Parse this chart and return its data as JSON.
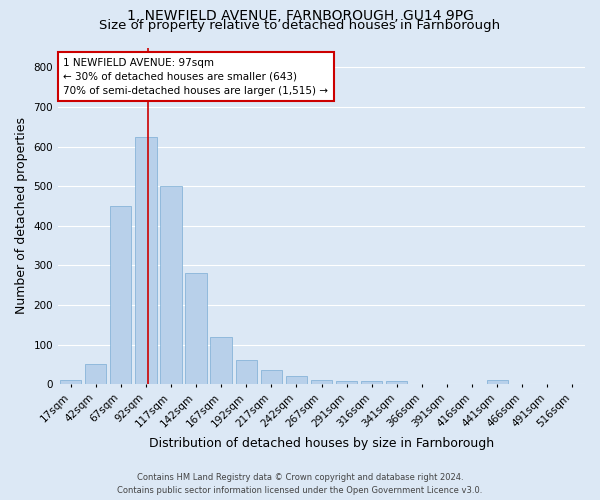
{
  "title1": "1, NEWFIELD AVENUE, FARNBOROUGH, GU14 9PG",
  "title2": "Size of property relative to detached houses in Farnborough",
  "xlabel": "Distribution of detached houses by size in Farnborough",
  "ylabel": "Number of detached properties",
  "footer1": "Contains HM Land Registry data © Crown copyright and database right 2024.",
  "footer2": "Contains public sector information licensed under the Open Government Licence v3.0.",
  "bar_labels": [
    "17sqm",
    "42sqm",
    "67sqm",
    "92sqm",
    "117sqm",
    "142sqm",
    "167sqm",
    "192sqm",
    "217sqm",
    "242sqm",
    "267sqm",
    "291sqm",
    "316sqm",
    "341sqm",
    "366sqm",
    "391sqm",
    "416sqm",
    "441sqm",
    "466sqm",
    "491sqm",
    "516sqm"
  ],
  "bar_values": [
    10,
    50,
    450,
    625,
    500,
    280,
    120,
    60,
    35,
    20,
    10,
    8,
    7,
    7,
    0,
    0,
    0,
    10,
    0,
    0,
    0
  ],
  "bar_color": "#b8d0ea",
  "bar_edge_color": "#7aadd4",
  "vline_color": "#cc0000",
  "vline_index": 3,
  "annotation_line1": "1 NEWFIELD AVENUE: 97sqm",
  "annotation_line2": "← 30% of detached houses are smaller (643)",
  "annotation_line3": "70% of semi-detached houses are larger (1,515) →",
  "annotation_box_color": "#ffffff",
  "annotation_box_edge": "#cc0000",
  "ylim": [
    0,
    850
  ],
  "yticks": [
    0,
    100,
    200,
    300,
    400,
    500,
    600,
    700,
    800
  ],
  "bg_color": "#dce8f5",
  "plot_bg_color": "#dce8f5",
  "grid_color": "#ffffff",
  "title1_fontsize": 10,
  "title2_fontsize": 9.5,
  "axis_label_fontsize": 9,
  "tick_fontsize": 7.5,
  "annotation_fontsize": 7.5,
  "footer_fontsize": 6
}
